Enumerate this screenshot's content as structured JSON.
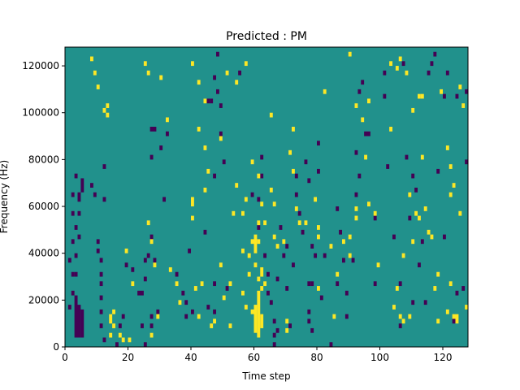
{
  "chart_data": {
    "type": "heatmap",
    "title": "Predicted : PM",
    "xlabel": "Time step",
    "ylabel": "Frequency (Hz)",
    "xlim": [
      0,
      128
    ],
    "ylim": [
      0,
      128000
    ],
    "x_ticks": [
      0,
      20,
      40,
      60,
      80,
      100,
      120
    ],
    "y_ticks": [
      0,
      20000,
      40000,
      60000,
      80000,
      100000,
      120000
    ],
    "colors": {
      "background": "#21918c",
      "low": "#440154",
      "high": "#fde725"
    },
    "cell_width": 1,
    "cell_height": 2000,
    "low_cells": [
      [
        3,
        4,
        22
      ],
      [
        4,
        4,
        18
      ],
      [
        5,
        4,
        16
      ],
      [
        3,
        30,
        32
      ],
      [
        3,
        38,
        40
      ],
      [
        4,
        46,
        48
      ],
      [
        3,
        50,
        52
      ],
      [
        4,
        56,
        58
      ],
      [
        4,
        62,
        66
      ],
      [
        5,
        66,
        72
      ],
      [
        3,
        72,
        74
      ],
      [
        2,
        64,
        66
      ],
      [
        2,
        56,
        58
      ],
      [
        2,
        44,
        46
      ],
      [
        2,
        30,
        32
      ],
      [
        1,
        36,
        38
      ],
      [
        2,
        22,
        24
      ],
      [
        1,
        16,
        18
      ],
      [
        11,
        20,
        22
      ],
      [
        11,
        26,
        28
      ],
      [
        11,
        30,
        32
      ],
      [
        11,
        36,
        38
      ],
      [
        11,
        14,
        16
      ],
      [
        11,
        8,
        10
      ],
      [
        12,
        2,
        4
      ],
      [
        10,
        40,
        42
      ],
      [
        10,
        44,
        46
      ],
      [
        9,
        64,
        66
      ],
      [
        8,
        68,
        70
      ],
      [
        12,
        76,
        78
      ],
      [
        12,
        62,
        64
      ],
      [
        17,
        8,
        10
      ],
      [
        18,
        12,
        14
      ],
      [
        16,
        0,
        2
      ],
      [
        23,
        22,
        24
      ],
      [
        24,
        22,
        24
      ],
      [
        21,
        32,
        34
      ],
      [
        19,
        34,
        36
      ],
      [
        25,
        28,
        30
      ],
      [
        25,
        0,
        2
      ],
      [
        24,
        8,
        10
      ],
      [
        27,
        8,
        10
      ],
      [
        27,
        12,
        14
      ],
      [
        28,
        36,
        38
      ],
      [
        25,
        36,
        38
      ],
      [
        26,
        38,
        40
      ],
      [
        29,
        14,
        16
      ],
      [
        27,
        46,
        48
      ],
      [
        31,
        62,
        64
      ],
      [
        27,
        80,
        82
      ],
      [
        30,
        84,
        86
      ],
      [
        27,
        92,
        94
      ],
      [
        28,
        92,
        94
      ],
      [
        32,
        90,
        92
      ],
      [
        35,
        30,
        32
      ],
      [
        38,
        12,
        14
      ],
      [
        38,
        18,
        20
      ],
      [
        40,
        14,
        16
      ],
      [
        37,
        22,
        24
      ],
      [
        39,
        40,
        42
      ],
      [
        44,
        48,
        50
      ],
      [
        45,
        16,
        18
      ],
      [
        47,
        14,
        16
      ],
      [
        47,
        26,
        28
      ],
      [
        47,
        72,
        74
      ],
      [
        50,
        78,
        80
      ],
      [
        49,
        90,
        92
      ],
      [
        51,
        24,
        26
      ],
      [
        49,
        102,
        104
      ],
      [
        45,
        104,
        106
      ],
      [
        46,
        104,
        106
      ],
      [
        48,
        108,
        110
      ],
      [
        47,
        114,
        116
      ],
      [
        48,
        124,
        126
      ],
      [
        55,
        116,
        118
      ],
      [
        62,
        80,
        82
      ],
      [
        62,
        72,
        74
      ],
      [
        59,
        64,
        66
      ],
      [
        61,
        62,
        64
      ],
      [
        61,
        50,
        52
      ],
      [
        63,
        38,
        40
      ],
      [
        64,
        30,
        32
      ],
      [
        64,
        22,
        24
      ],
      [
        65,
        18,
        20
      ],
      [
        66,
        10,
        12
      ],
      [
        66,
        4,
        6
      ],
      [
        66,
        0,
        2
      ],
      [
        67,
        6,
        8
      ],
      [
        67,
        28,
        30
      ],
      [
        68,
        50,
        52
      ],
      [
        69,
        38,
        40
      ],
      [
        70,
        42,
        44
      ],
      [
        70,
        24,
        26
      ],
      [
        71,
        8,
        10
      ],
      [
        72,
        34,
        36
      ],
      [
        73,
        72,
        74
      ],
      [
        73,
        64,
        66
      ],
      [
        74,
        56,
        58
      ],
      [
        75,
        48,
        50
      ],
      [
        76,
        78,
        80
      ],
      [
        77,
        70,
        72
      ],
      [
        77,
        26,
        28
      ],
      [
        77,
        10,
        12
      ],
      [
        77,
        14,
        16
      ],
      [
        78,
        42,
        44
      ],
      [
        78,
        26,
        28
      ],
      [
        78,
        6,
        8
      ],
      [
        79,
        38,
        40
      ],
      [
        80,
        74,
        76
      ],
      [
        80,
        86,
        88
      ],
      [
        81,
        20,
        22
      ],
      [
        82,
        38,
        40
      ],
      [
        84,
        0,
        2
      ],
      [
        86,
        26,
        28
      ],
      [
        86,
        58,
        60
      ],
      [
        87,
        48,
        50
      ],
      [
        88,
        36,
        38
      ],
      [
        89,
        22,
        24
      ],
      [
        89,
        12,
        14
      ],
      [
        92,
        64,
        66
      ],
      [
        92,
        82,
        84
      ],
      [
        91,
        36,
        38
      ],
      [
        93,
        72,
        74
      ],
      [
        93,
        108,
        110
      ],
      [
        94,
        112,
        114
      ],
      [
        95,
        90,
        92
      ],
      [
        96,
        90,
        92
      ],
      [
        98,
        26,
        28
      ],
      [
        98,
        54,
        56
      ],
      [
        101,
        106,
        108
      ],
      [
        101,
        116,
        118
      ],
      [
        102,
        76,
        78
      ],
      [
        104,
        46,
        48
      ],
      [
        106,
        26,
        28
      ],
      [
        106,
        8,
        10
      ],
      [
        107,
        120,
        122
      ],
      [
        109,
        54,
        56
      ],
      [
        108,
        80,
        82
      ],
      [
        110,
        18,
        20
      ],
      [
        110,
        72,
        74
      ],
      [
        111,
        66,
        68
      ],
      [
        112,
        34,
        36
      ],
      [
        113,
        44,
        46
      ],
      [
        114,
        18,
        20
      ],
      [
        115,
        116,
        118
      ],
      [
        116,
        120,
        122
      ],
      [
        117,
        124,
        126
      ],
      [
        118,
        74,
        76
      ],
      [
        120,
        106,
        108
      ],
      [
        120,
        46,
        48
      ],
      [
        121,
        116,
        118
      ],
      [
        123,
        10,
        12
      ],
      [
        124,
        106,
        108
      ],
      [
        124,
        22,
        24
      ],
      [
        126,
        24,
        26
      ],
      [
        127,
        108,
        110
      ],
      [
        127,
        78,
        80
      ]
    ],
    "high_cells": [
      [
        60,
        6,
        18
      ],
      [
        61,
        4,
        24
      ],
      [
        62,
        8,
        14
      ],
      [
        61,
        28,
        30
      ],
      [
        60,
        40,
        48
      ],
      [
        61,
        44,
        46
      ],
      [
        59,
        44,
        46
      ],
      [
        58,
        38,
        40
      ],
      [
        56,
        40,
        42
      ],
      [
        62,
        30,
        34
      ],
      [
        60,
        34,
        36
      ],
      [
        62,
        24,
        26
      ],
      [
        61,
        52,
        54
      ],
      [
        59,
        14,
        16
      ],
      [
        57,
        16,
        18
      ],
      [
        58,
        30,
        32
      ],
      [
        56,
        22,
        24
      ],
      [
        14,
        10,
        14
      ],
      [
        15,
        8,
        10
      ],
      [
        15,
        14,
        16
      ],
      [
        14,
        4,
        6
      ],
      [
        17,
        4,
        6
      ],
      [
        18,
        2,
        4
      ],
      [
        20,
        2,
        4
      ],
      [
        21,
        26,
        28
      ],
      [
        19,
        40,
        42
      ],
      [
        26,
        52,
        54
      ],
      [
        27,
        44,
        46
      ],
      [
        28,
        34,
        36
      ],
      [
        27,
        4,
        6
      ],
      [
        29,
        12,
        14
      ],
      [
        33,
        32,
        34
      ],
      [
        35,
        26,
        28
      ],
      [
        36,
        18,
        20
      ],
      [
        40,
        60,
        64
      ],
      [
        40,
        54,
        56
      ],
      [
        41,
        24,
        26
      ],
      [
        42,
        12,
        14
      ],
      [
        42,
        92,
        94
      ],
      [
        44,
        84,
        86
      ],
      [
        45,
        74,
        76
      ],
      [
        43,
        26,
        28
      ],
      [
        44,
        66,
        68
      ],
      [
        46,
        8,
        10
      ],
      [
        47,
        10,
        12
      ],
      [
        49,
        34,
        36
      ],
      [
        50,
        20,
        22
      ],
      [
        52,
        8,
        10
      ],
      [
        52,
        26,
        28
      ],
      [
        53,
        56,
        58
      ],
      [
        54,
        68,
        70
      ],
      [
        56,
        56,
        58
      ],
      [
        57,
        62,
        64
      ],
      [
        59,
        78,
        80
      ],
      [
        61,
        72,
        74
      ],
      [
        62,
        60,
        62
      ],
      [
        63,
        52,
        54
      ],
      [
        63,
        26,
        28
      ],
      [
        65,
        66,
        68
      ],
      [
        66,
        46,
        48
      ],
      [
        66,
        60,
        62
      ],
      [
        67,
        42,
        44
      ],
      [
        69,
        44,
        46
      ],
      [
        70,
        10,
        12
      ],
      [
        70,
        6,
        8
      ],
      [
        71,
        82,
        84
      ],
      [
        72,
        74,
        76
      ],
      [
        73,
        58,
        60
      ],
      [
        74,
        52,
        54
      ],
      [
        76,
        52,
        54
      ],
      [
        80,
        24,
        26
      ],
      [
        80,
        46,
        48
      ],
      [
        80,
        50,
        52
      ],
      [
        79,
        62,
        64
      ],
      [
        84,
        42,
        44
      ],
      [
        85,
        12,
        14
      ],
      [
        86,
        30,
        32
      ],
      [
        88,
        44,
        46
      ],
      [
        90,
        38,
        40
      ],
      [
        90,
        46,
        48
      ],
      [
        92,
        54,
        56
      ],
      [
        92,
        58,
        60
      ],
      [
        95,
        80,
        82
      ],
      [
        96,
        60,
        62
      ],
      [
        98,
        56,
        58
      ],
      [
        99,
        34,
        36
      ],
      [
        103,
        92,
        94
      ],
      [
        104,
        16,
        18
      ],
      [
        105,
        24,
        26
      ],
      [
        106,
        12,
        14
      ],
      [
        107,
        10,
        12
      ],
      [
        107,
        38,
        40
      ],
      [
        109,
        12,
        14
      ],
      [
        109,
        64,
        66
      ],
      [
        110,
        44,
        46
      ],
      [
        111,
        56,
        58
      ],
      [
        112,
        54,
        56
      ],
      [
        113,
        80,
        82
      ],
      [
        114,
        58,
        60
      ],
      [
        115,
        48,
        50
      ],
      [
        116,
        46,
        48
      ],
      [
        117,
        24,
        26
      ],
      [
        118,
        10,
        12
      ],
      [
        118,
        30,
        32
      ],
      [
        121,
        14,
        16
      ],
      [
        122,
        26,
        28
      ],
      [
        122,
        64,
        66
      ],
      [
        123,
        12,
        14
      ],
      [
        124,
        10,
        14
      ],
      [
        125,
        56,
        58
      ],
      [
        127,
        16,
        18
      ],
      [
        8,
        122,
        124
      ],
      [
        9,
        116,
        118
      ],
      [
        10,
        110,
        112
      ],
      [
        11,
        128,
        128
      ],
      [
        12,
        100,
        102
      ],
      [
        13,
        98,
        100
      ],
      [
        13,
        102,
        104
      ],
      [
        26,
        116,
        118
      ],
      [
        25,
        120,
        122
      ],
      [
        30,
        114,
        116
      ],
      [
        32,
        96,
        98
      ],
      [
        40,
        120,
        122
      ],
      [
        42,
        112,
        114
      ],
      [
        44,
        104,
        106
      ],
      [
        49,
        88,
        90
      ],
      [
        51,
        116,
        118
      ],
      [
        54,
        112,
        114
      ],
      [
        57,
        120,
        122
      ],
      [
        65,
        98,
        100
      ],
      [
        72,
        92,
        94
      ],
      [
        82,
        108,
        110
      ],
      [
        90,
        124,
        126
      ],
      [
        92,
        102,
        104
      ],
      [
        94,
        96,
        98
      ],
      [
        96,
        104,
        106
      ],
      [
        103,
        120,
        122
      ],
      [
        105,
        118,
        120
      ],
      [
        106,
        122,
        124
      ],
      [
        108,
        116,
        118
      ],
      [
        110,
        100,
        102
      ],
      [
        112,
        106,
        108
      ],
      [
        113,
        106,
        108
      ],
      [
        119,
        108,
        110
      ],
      [
        121,
        84,
        86
      ],
      [
        122,
        76,
        78
      ],
      [
        123,
        68,
        70
      ],
      [
        125,
        110,
        112
      ],
      [
        126,
        102,
        104
      ]
    ]
  }
}
